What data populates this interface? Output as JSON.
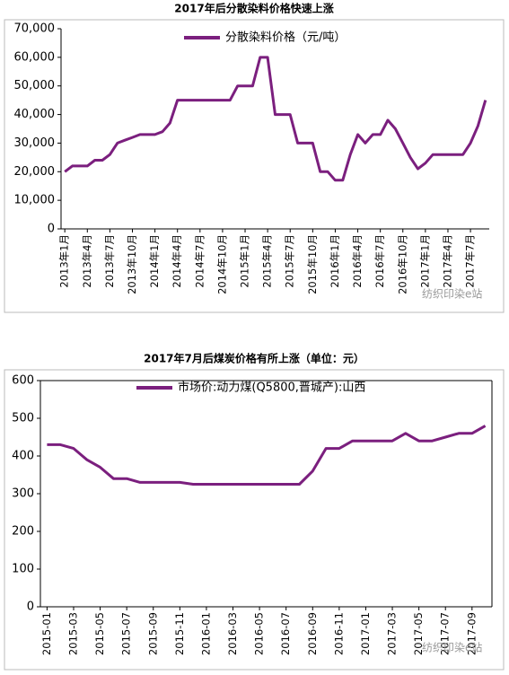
{
  "chart_data": [
    {
      "type": "line",
      "title": "2017年后分散染料价格快速上涨",
      "watermark": "纺织印染e站",
      "categories": [
        "2013年1月",
        null,
        null,
        "2013年4月",
        null,
        null,
        "2013年7月",
        null,
        null,
        "2013年10月",
        null,
        null,
        "2014年1月",
        null,
        null,
        "2014年4月",
        null,
        null,
        "2014年7月",
        null,
        null,
        "2014年10月",
        null,
        null,
        "2015年1月",
        null,
        null,
        "2015年4月",
        null,
        null,
        "2015年7月",
        null,
        null,
        "2015年10月",
        null,
        null,
        "2016年1月",
        null,
        null,
        "2016年4月",
        null,
        null,
        "2016年7月",
        null,
        null,
        "2016年10月",
        null,
        null,
        "2017年1月",
        null,
        null,
        "2017年4月",
        null,
        null,
        "2017年7月",
        null,
        null
      ],
      "series": [
        {
          "name": "分散染料价格（元/吨）",
          "color": "#7b1f7e",
          "values": [
            20000,
            22000,
            22000,
            22000,
            24000,
            24000,
            26000,
            30000,
            31000,
            32000,
            33000,
            33000,
            33000,
            34000,
            37000,
            45000,
            45000,
            45000,
            45000,
            45000,
            45000,
            45000,
            45000,
            50000,
            50000,
            50000,
            60000,
            60000,
            40000,
            40000,
            40000,
            30000,
            30000,
            30000,
            20000,
            20000,
            17000,
            17000,
            26000,
            33000,
            30000,
            33000,
            33000,
            38000,
            35000,
            30000,
            25000,
            21000,
            23000,
            26000,
            26000,
            26000,
            26000,
            26000,
            30000,
            36000,
            45000
          ]
        }
      ],
      "ylim": [
        0,
        70000
      ],
      "yticks": [
        0,
        {
          "value": 10000,
          "label": "10,000"
        },
        {
          "value": 20000,
          "label": "20,000"
        },
        {
          "value": 30000,
          "label": "30,000"
        },
        {
          "value": 40000,
          "label": "40,000"
        },
        {
          "value": 50000,
          "label": "50,000"
        },
        {
          "value": 60000,
          "label": "60,000"
        },
        {
          "value": 70000,
          "label": "70,000"
        }
      ],
      "grid": false
    },
    {
      "type": "line",
      "title": "2017年7月后煤炭价格有所上涨（单位：元）",
      "watermark": "纺织印染e站",
      "categories": [
        "2015-01",
        null,
        "2015-03",
        null,
        "2015-05",
        null,
        "2015-07",
        null,
        "2015-09",
        null,
        "2015-11",
        null,
        "2016-01",
        null,
        "2016-03",
        null,
        "2016-05",
        null,
        "2016-07",
        null,
        "2016-09",
        null,
        "2016-11",
        null,
        "2017-01",
        null,
        "2017-03",
        null,
        "2017-05",
        null,
        "2017-07",
        null,
        "2017-09",
        null
      ],
      "series": [
        {
          "name": "市场价:动力煤(Q5800,晋城产):山西",
          "color": "#7b1f7e",
          "values": [
            430,
            430,
            420,
            390,
            370,
            340,
            340,
            330,
            330,
            330,
            330,
            325,
            325,
            325,
            325,
            325,
            325,
            325,
            325,
            325,
            360,
            420,
            420,
            440,
            440,
            440,
            440,
            460,
            440,
            440,
            450,
            460,
            460,
            480
          ]
        }
      ],
      "ylim": [
        0,
        600
      ],
      "yticks": [
        0,
        100,
        200,
        300,
        400,
        500,
        600
      ],
      "grid": false
    }
  ]
}
